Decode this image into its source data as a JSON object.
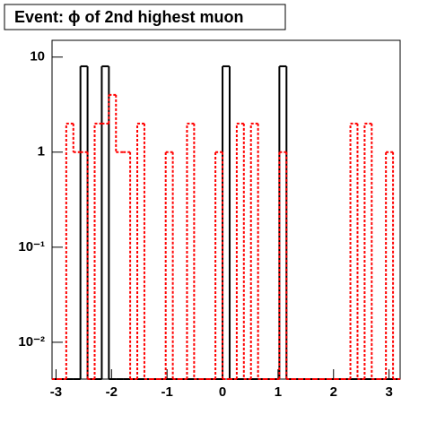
{
  "chart_data": {
    "type": "histogram",
    "title": "Event: ϕ of 2nd highest muon",
    "bins": [
      -3.072,
      -2.944,
      -2.816,
      -2.688,
      -2.56,
      -2.432,
      -2.304,
      -2.176,
      -2.048,
      -1.92,
      -1.792,
      -1.664,
      -1.536,
      -1.408,
      -1.28,
      -1.152,
      -1.024,
      -0.896,
      -0.768,
      -0.64,
      -0.512,
      -0.384,
      -0.256,
      -0.128,
      0,
      0.128,
      0.256,
      0.384,
      0.512,
      0.64,
      0.768,
      0.896,
      1.024,
      1.152,
      1.28,
      1.408,
      1.536,
      1.664,
      1.792,
      1.92,
      2.048,
      2.176,
      2.304,
      2.432,
      2.56,
      2.688,
      2.816,
      2.944,
      3.072,
      3.2
    ],
    "series": [
      {
        "color": "#000000",
        "dashed": false,
        "values": [
          0,
          0,
          0,
          0,
          8,
          0,
          0,
          8,
          0,
          0,
          0,
          0,
          0,
          0,
          0,
          0,
          0,
          0,
          0,
          0,
          0,
          0,
          0,
          0,
          8,
          0,
          0,
          0,
          0,
          0,
          0,
          0,
          8,
          0,
          0,
          0,
          0,
          0,
          0,
          0,
          0,
          0,
          0,
          0,
          0,
          0,
          0,
          0,
          0
        ]
      },
      {
        "color": "#ff0000",
        "dashed": true,
        "values": [
          0,
          0,
          2,
          1,
          1,
          0,
          2,
          2,
          4,
          1,
          1,
          0,
          2,
          0,
          0,
          0,
          1,
          0,
          0,
          2,
          0,
          0,
          0,
          1,
          0,
          0,
          2,
          0,
          2,
          0,
          0,
          0,
          1,
          0,
          0,
          0,
          0,
          0,
          0,
          0,
          0,
          0,
          2,
          0,
          2,
          0,
          0,
          1,
          0
        ]
      }
    ],
    "xlim": [
      -3.072,
      3.2
    ],
    "xticks": [
      -3,
      -2,
      -1,
      0,
      1,
      2,
      3
    ],
    "ylim": [
      0.0041,
      15
    ],
    "log_y": true,
    "yticks": [
      {
        "value": 0.01,
        "label": "10⁻²"
      },
      {
        "value": 0.1,
        "label": "10⁻¹"
      },
      1,
      10
    ],
    "grid": false
  }
}
